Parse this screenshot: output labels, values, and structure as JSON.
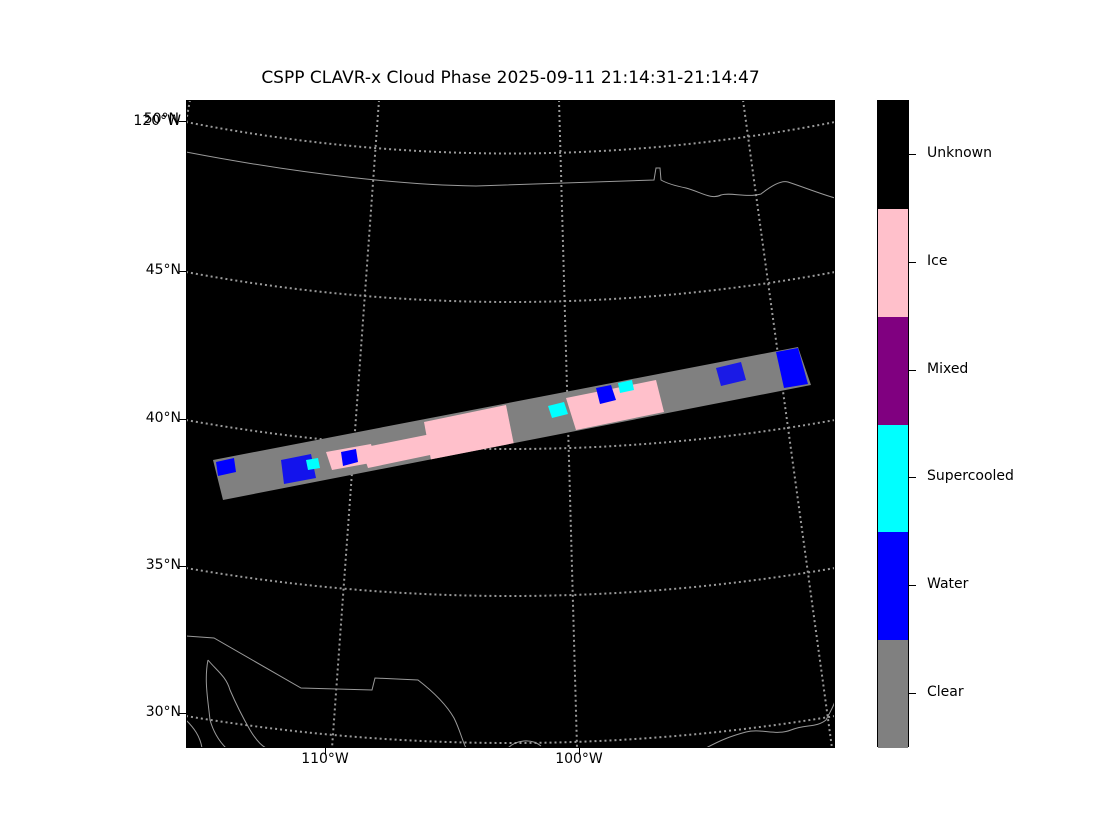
{
  "title": "CSPP CLAVR-x Cloud Phase 2025-09-11 21:14:31-21:14:47",
  "map": {
    "background_color": "#000000",
    "gridline_color": "#9a9a9a",
    "coastline_color": "#9a9a9a",
    "lat_labels": [
      "50°N",
      "45°N",
      "40°N",
      "35°N",
      "30°N"
    ],
    "lon_labels": [
      "110°W",
      "100°W"
    ],
    "corner_label": "120°W"
  },
  "colorbar": {
    "classes": [
      {
        "label": "Unknown",
        "color": "#000000"
      },
      {
        "label": "Ice",
        "color": "#ffc0cb"
      },
      {
        "label": "Mixed",
        "color": "#800080"
      },
      {
        "label": "Supercooled",
        "color": "#00ffff"
      },
      {
        "label": "Water",
        "color": "#0000ff"
      },
      {
        "label": "Clear",
        "color": "#808080"
      }
    ]
  }
}
